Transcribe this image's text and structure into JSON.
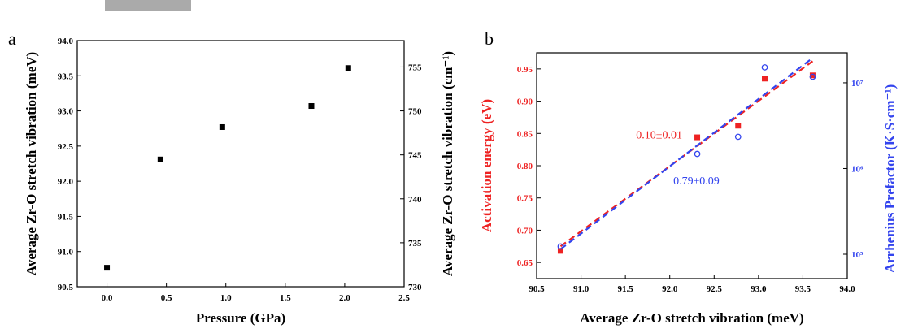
{
  "panels": {
    "a_label": "a",
    "b_label": "b"
  },
  "chart_data": [
    {
      "type": "scatter",
      "panel": "a",
      "title": "",
      "xlabel": "Pressure (GPa)",
      "ylabel": "Average Zr-O stretch vibration (meV)",
      "y2label": "Average Zr-O stretch vibration (cm⁻¹)",
      "xlim": [
        -0.25,
        2.5
      ],
      "ylim": [
        90.5,
        94.0
      ],
      "y2lim": [
        730,
        758
      ],
      "x_ticks": [
        "0.0",
        "0.5",
        "1.0",
        "1.5",
        "2.0",
        "2.5"
      ],
      "y_ticks": [
        "90.5",
        "91.0",
        "91.5",
        "92.0",
        "92.5",
        "93.0",
        "93.5",
        "94.0"
      ],
      "y2_ticks": [
        "730",
        "735",
        "740",
        "745",
        "750",
        "755"
      ],
      "marker_color": "#000000",
      "points": [
        {
          "x": 0.0,
          "y": 90.77
        },
        {
          "x": 0.45,
          "y": 92.31
        },
        {
          "x": 0.97,
          "y": 92.77
        },
        {
          "x": 1.72,
          "y": 93.07
        },
        {
          "x": 2.03,
          "y": 93.61
        }
      ]
    },
    {
      "type": "scatter",
      "panel": "b",
      "title": "",
      "xlabel": "Average Zr-O stretch vibration (meV)",
      "ylabel": "Activation energy (eV)",
      "y2label": "Arrhenius Prefactor (K·S·cm⁻¹)",
      "xlim": [
        90.5,
        94.0
      ],
      "ylim": [
        0.625,
        0.975
      ],
      "y2_scale": "log",
      "y2_exp_range": [
        5,
        7.35
      ],
      "x_ticks": [
        "90.5",
        "91.0",
        "91.5",
        "92.0",
        "92.5",
        "93.0",
        "93.5",
        "94.0"
      ],
      "y_ticks": [
        "0.65",
        "0.70",
        "0.75",
        "0.80",
        "0.85",
        "0.90",
        "0.95"
      ],
      "y2_ticks": [
        "10⁵",
        "10⁶",
        "10⁷"
      ],
      "series": [
        {
          "color": "#ee2222",
          "marker": "filled-square",
          "axis": "left",
          "points": [
            {
              "x": 90.77,
              "y": 0.668
            },
            {
              "x": 92.31,
              "y": 0.844
            },
            {
              "x": 92.77,
              "y": 0.862
            },
            {
              "x": 93.07,
              "y": 0.935
            },
            {
              "x": 93.61,
              "y": 0.94
            }
          ],
          "fit": {
            "x": [
              90.77,
              93.61
            ],
            "y": [
              0.675,
              0.962
            ]
          },
          "annotation": "0.10±0.01"
        },
        {
          "color": "#3344ee",
          "marker": "open-circle",
          "axis": "right",
          "points": [
            {
              "x": 90.77,
              "log10y": 5.09
            },
            {
              "x": 92.31,
              "log10y": 6.17
            },
            {
              "x": 92.77,
              "log10y": 6.37
            },
            {
              "x": 93.07,
              "log10y": 7.18
            },
            {
              "x": 93.61,
              "log10y": 7.07
            }
          ],
          "fit": {
            "x": [
              90.77,
              93.61
            ],
            "log10y": [
              5.06,
              7.29
            ]
          },
          "annotation": "0.79±0.09"
        }
      ]
    }
  ]
}
